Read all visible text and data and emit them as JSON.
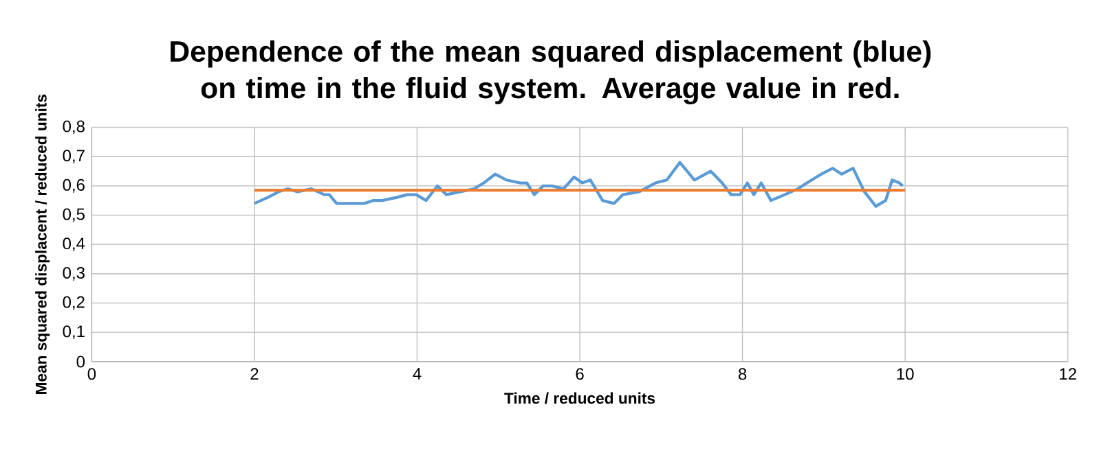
{
  "chart_data": {
    "type": "line",
    "title": "Dependence of the mean squared displacement (blue) on time in the fluid system. Average value in red.",
    "xlabel": "Time / reduced units",
    "ylabel": "Mean squared displacent / reduced units",
    "xlim": [
      0,
      12
    ],
    "xticks": [
      0,
      2,
      4,
      6,
      8,
      10,
      12
    ],
    "ylim": [
      0,
      0.8
    ],
    "yticks": [
      0,
      {
        "value": 0.1,
        "label": "0,1"
      },
      {
        "value": 0.2,
        "label": "0,2"
      },
      {
        "value": 0.3,
        "label": "0,3"
      },
      {
        "value": 0.4,
        "label": "0,4"
      },
      {
        "value": 0.5,
        "label": "0,5"
      },
      {
        "value": 0.6,
        "label": "0,6"
      },
      {
        "value": 0.7,
        "label": "0,7"
      },
      {
        "value": 0.8,
        "label": "0,8"
      }
    ],
    "grid": true,
    "marker": "none",
    "line_style": "solid",
    "series": [
      {
        "color": "#5b9bd5",
        "x": [
          2.0,
          2.16,
          2.3,
          2.41,
          2.53,
          2.7,
          2.86,
          2.92,
          3.01,
          3.18,
          3.35,
          3.46,
          3.57,
          3.74,
          3.88,
          3.99,
          4.11,
          4.25,
          4.36,
          4.53,
          4.7,
          4.82,
          4.96,
          5.1,
          5.27,
          5.35,
          5.44,
          5.55,
          5.66,
          5.8,
          5.93,
          6.03,
          6.13,
          6.28,
          6.42,
          6.53,
          6.73,
          6.93,
          7.07,
          7.23,
          7.41,
          7.61,
          7.75,
          7.86,
          7.97,
          8.06,
          8.14,
          8.23,
          8.35,
          8.52,
          8.68,
          8.85,
          8.97,
          9.11,
          9.22,
          9.36,
          9.5,
          9.64,
          9.76,
          9.84,
          9.93,
          9.97
        ],
        "values": [
          0.54,
          0.56,
          0.58,
          0.59,
          0.58,
          0.59,
          0.57,
          0.57,
          0.54,
          0.54,
          0.54,
          0.55,
          0.55,
          0.56,
          0.57,
          0.57,
          0.55,
          0.6,
          0.57,
          0.58,
          0.59,
          0.61,
          0.64,
          0.62,
          0.61,
          0.61,
          0.57,
          0.6,
          0.6,
          0.59,
          0.63,
          0.61,
          0.62,
          0.55,
          0.54,
          0.57,
          0.58,
          0.61,
          0.62,
          0.68,
          0.62,
          0.65,
          0.61,
          0.57,
          0.57,
          0.61,
          0.57,
          0.61,
          0.55,
          0.57,
          0.59,
          0.62,
          0.64,
          0.66,
          0.64,
          0.66,
          0.58,
          0.53,
          0.55,
          0.62,
          0.61,
          0.6
        ]
      },
      {
        "color": "#ed7d31",
        "x": [
          2,
          10
        ],
        "values": [
          0.585,
          0.585
        ]
      }
    ]
  }
}
